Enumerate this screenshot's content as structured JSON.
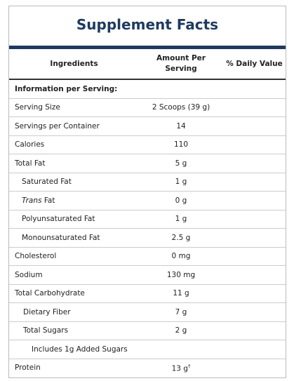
{
  "header": {
    "title": "Supplement Facts"
  },
  "table": {
    "columns": [
      "Ingredients",
      "Amount Per Serving",
      "% Daily Value"
    ],
    "section": "Information per Serving:",
    "rows": [
      {
        "label": "Serving Size",
        "amount": "2 Scoops (39 g)"
      },
      {
        "label": "Servings per Container",
        "amount": "14"
      },
      {
        "label": "Calories",
        "amount": "110"
      },
      {
        "label": "Total Fat",
        "amount": "5 g"
      },
      {
        "label": "Saturated Fat",
        "amount": "1 g"
      },
      {
        "label_italic": "Trans",
        "label": "Fat",
        "amount": "0 g"
      },
      {
        "label": "Polyunsaturated Fat",
        "amount": "1 g"
      },
      {
        "label": "Monounsaturated Fat",
        "amount": "2.5 g"
      },
      {
        "label": "Cholesterol",
        "amount": "0 mg"
      },
      {
        "label": "Sodium",
        "amount": "130 mg"
      },
      {
        "label": "Total Carbohydrate",
        "amount": "11 g"
      },
      {
        "label": "Dietary Fiber",
        "amount": "7 g"
      },
      {
        "label": "Total Sugars",
        "amount": "2 g"
      },
      {
        "label": "Includes 1g Added Sugars"
      },
      {
        "label": "Protein",
        "amount": "13 g",
        "mark": "†"
      }
    ]
  }
}
